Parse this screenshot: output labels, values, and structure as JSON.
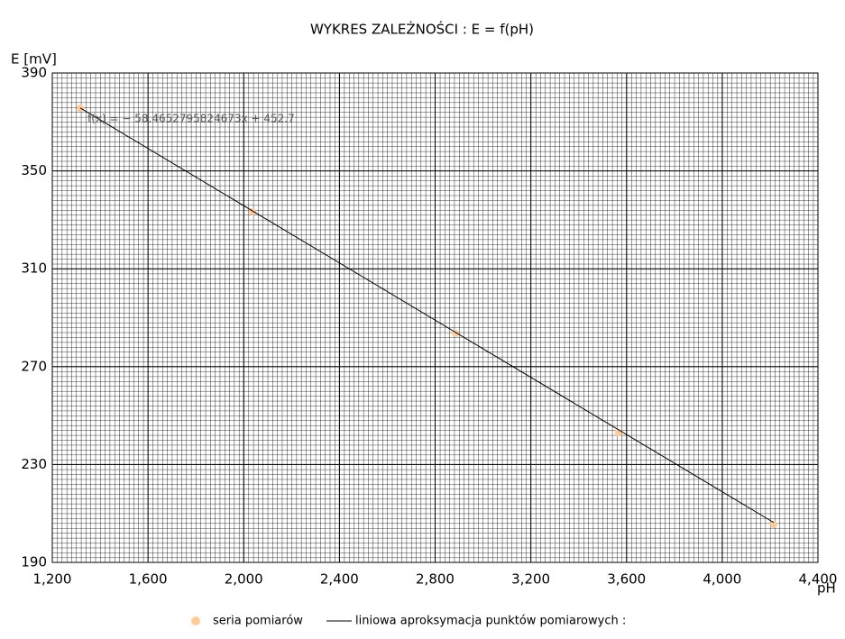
{
  "chart_data": {
    "type": "scatter",
    "title": "WYKRES ZALEŻNOŚCI :  E = f(pH)",
    "x_label": "pH",
    "y_label": "E [mV]",
    "annotation": "f(x) = − 58.4652795824673x + 452.7",
    "series": [
      {
        "name": "seria pomiarów",
        "type": "scatter",
        "color": "#ffcc99",
        "x": [
          1.317,
          2.037,
          2.885,
          3.567,
          4.215
        ],
        "values": [
          375.6,
          333.3,
          283.6,
          243,
          205.5
        ]
      },
      {
        "name": "liniowa aproksymacja punktów pomiarowych :",
        "type": "line",
        "color": "#000000",
        "x": [
          1.317,
          4.215
        ],
        "values": [
          375.7,
          206.3
        ]
      }
    ],
    "xlim": [
      1.2,
      4.4
    ],
    "xticks": [
      {
        "value": 1.2,
        "label": "1,200"
      },
      {
        "value": 1.6,
        "label": "1,600"
      },
      {
        "value": 2.0,
        "label": "2,000"
      },
      {
        "value": 2.4,
        "label": "2,400"
      },
      {
        "value": 2.8,
        "label": "2,800"
      },
      {
        "value": 3.2,
        "label": "3,200"
      },
      {
        "value": 3.6,
        "label": "3,600"
      },
      {
        "value": 4.0,
        "label": "4,000"
      },
      {
        "value": 4.4,
        "label": "4,400"
      }
    ],
    "ylim": [
      190,
      390
    ],
    "yticks": [
      190,
      230,
      270,
      310,
      350,
      390
    ],
    "grid": true
  }
}
